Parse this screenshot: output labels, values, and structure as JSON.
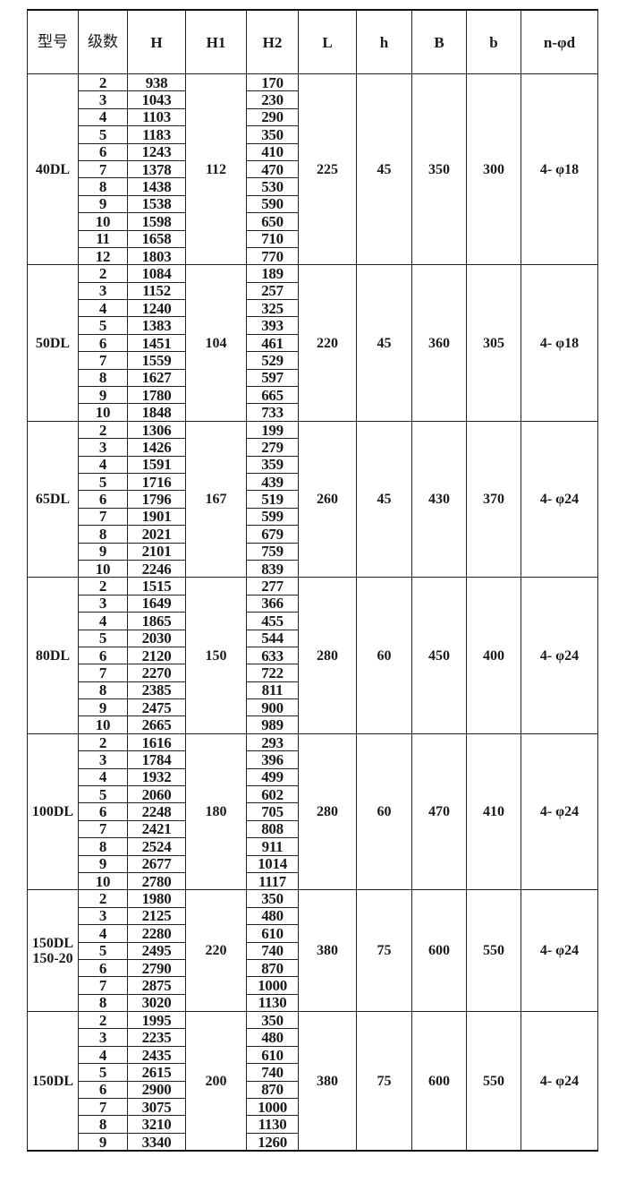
{
  "headers": [
    "型号",
    "级数",
    "H",
    "H1",
    "H2",
    "L",
    "h",
    "B",
    "b",
    "n-φd"
  ],
  "groups": [
    {
      "model": "40DL",
      "stages": [
        "2",
        "3",
        "4",
        "5",
        "6",
        "7",
        "8",
        "9",
        "10",
        "11",
        "12"
      ],
      "H": [
        "938",
        "1043",
        "1103",
        "1183",
        "1243",
        "1378",
        "1438",
        "1538",
        "1598",
        "1658",
        "1803"
      ],
      "H1": "112",
      "H2": [
        "170",
        "230",
        "290",
        "350",
        "410",
        "470",
        "530",
        "590",
        "650",
        "710",
        "770"
      ],
      "L": "225",
      "h": "45",
      "B": "350",
      "b": "300",
      "nd": "4- φ18"
    },
    {
      "model": "50DL",
      "stages": [
        "2",
        "3",
        "4",
        "5",
        "6",
        "7",
        "8",
        "9",
        "10"
      ],
      "H": [
        "1084",
        "1152",
        "1240",
        "1383",
        "1451",
        "1559",
        "1627",
        "1780",
        "1848"
      ],
      "H1": "104",
      "H2": [
        "189",
        "257",
        "325",
        "393",
        "461",
        "529",
        "597",
        "665",
        "733"
      ],
      "L": "220",
      "h": "45",
      "B": "360",
      "b": "305",
      "nd": "4- φ18"
    },
    {
      "model": "65DL",
      "stages": [
        "2",
        "3",
        "4",
        "5",
        "6",
        "7",
        "8",
        "9",
        "10"
      ],
      "H": [
        "1306",
        "1426",
        "1591",
        "1716",
        "1796",
        "1901",
        "2021",
        "2101",
        "2246"
      ],
      "H1": "167",
      "H2": [
        "199",
        "279",
        "359",
        "439",
        "519",
        "599",
        "679",
        "759",
        "839"
      ],
      "L": "260",
      "h": "45",
      "B": "430",
      "b": "370",
      "nd": "4- φ24"
    },
    {
      "model": "80DL",
      "stages": [
        "2",
        "3",
        "4",
        "5",
        "6",
        "7",
        "8",
        "9",
        "10"
      ],
      "H": [
        "1515",
        "1649",
        "1865",
        "2030",
        "2120",
        "2270",
        "2385",
        "2475",
        "2665"
      ],
      "H1": "150",
      "H2": [
        "277",
        "366",
        "455",
        "544",
        "633",
        "722",
        "811",
        "900",
        "989"
      ],
      "L": "280",
      "h": "60",
      "B": "450",
      "b": "400",
      "nd": "4- φ24"
    },
    {
      "model": "100DL",
      "stages": [
        "2",
        "3",
        "4",
        "5",
        "6",
        "7",
        "8",
        "9",
        "10"
      ],
      "H": [
        "1616",
        "1784",
        "1932",
        "2060",
        "2248",
        "2421",
        "2524",
        "2677",
        "2780"
      ],
      "H1": "180",
      "H2": [
        "293",
        "396",
        "499",
        "602",
        "705",
        "808",
        "911",
        "1014",
        "1117"
      ],
      "L": "280",
      "h": "60",
      "B": "470",
      "b": "410",
      "nd": "4- φ24"
    },
    {
      "model": "150DL\n150-20",
      "stages": [
        "2",
        "3",
        "4",
        "5",
        "6",
        "7",
        "8"
      ],
      "H": [
        "1980",
        "2125",
        "2280",
        "2495",
        "2790",
        "2875",
        "3020"
      ],
      "H1": "220",
      "H2": [
        "350",
        "480",
        "610",
        "740",
        "870",
        "1000",
        "1130"
      ],
      "L": "380",
      "h": "75",
      "B": "600",
      "b": "550",
      "nd": "4- φ24"
    },
    {
      "model": "150DL",
      "stages": [
        "2",
        "3",
        "4",
        "5",
        "6",
        "7",
        "8",
        "9"
      ],
      "H": [
        "1995",
        "2235",
        "2435",
        "2615",
        "2900",
        "3075",
        "3210",
        "3340"
      ],
      "H1": "200",
      "H2": [
        "350",
        "480",
        "610",
        "740",
        "870",
        "1000",
        "1130",
        "1260"
      ],
      "L": "380",
      "h": "75",
      "B": "600",
      "b": "550",
      "nd": "4- φ24"
    }
  ]
}
